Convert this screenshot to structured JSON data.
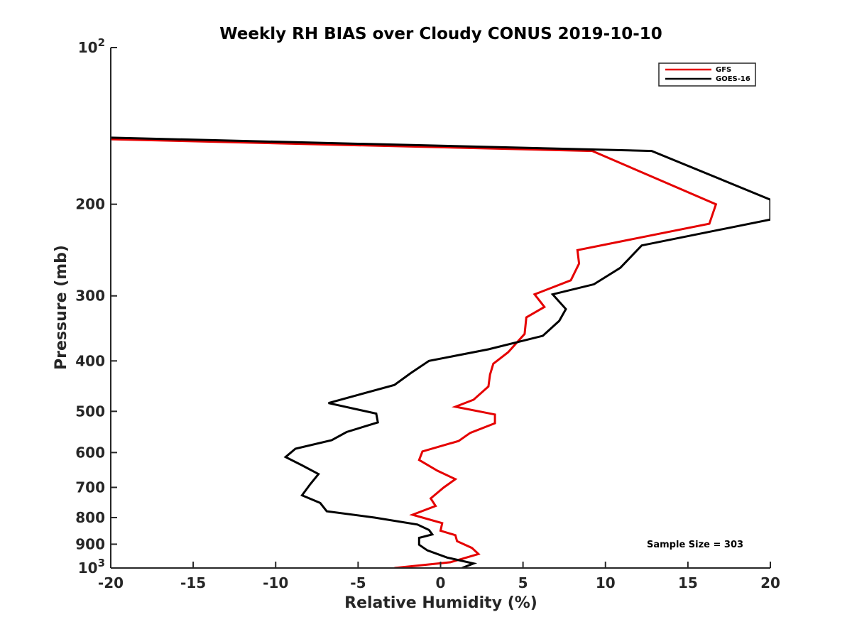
{
  "chart_data": {
    "type": "line",
    "title": "Weekly RH BIAS over Cloudy CONUS 2019-10-10",
    "xlabel": "Relative Humidity (%)",
    "ylabel": "Pressure (mb)",
    "xlim": [
      -20,
      20
    ],
    "ylim": [
      100,
      1000
    ],
    "y_scale": "log",
    "y_reversed": true,
    "x_ticks": [
      -20,
      -15,
      -10,
      -5,
      0,
      5,
      10,
      15,
      20
    ],
    "x_tick_labels": [
      "-20",
      "-15",
      "-10",
      "-5",
      "0",
      "5",
      "10",
      "15",
      "20"
    ],
    "y_ticks": [
      100,
      200,
      300,
      400,
      500,
      600,
      700,
      800,
      900,
      1000
    ],
    "y_tick_labels": [
      {
        "base": "10",
        "sup": "2"
      },
      {
        "base": "200",
        "sup": ""
      },
      {
        "base": "300",
        "sup": ""
      },
      {
        "base": "400",
        "sup": ""
      },
      {
        "base": "500",
        "sup": ""
      },
      {
        "base": "600",
        "sup": ""
      },
      {
        "base": "700",
        "sup": ""
      },
      {
        "base": "800",
        "sup": ""
      },
      {
        "base": "900",
        "sup": ""
      },
      {
        "base": "10",
        "sup": "3"
      }
    ],
    "grid": false,
    "legend_position": "top-right",
    "annotation": "Sample Size = 303",
    "series": [
      {
        "name": "GFS",
        "color": "#e50000",
        "points": [
          [
            -20,
            150
          ],
          [
            9.2,
            158
          ],
          [
            16.7,
            200
          ],
          [
            16.3,
            218
          ],
          [
            8.3,
            245
          ],
          [
            8.4,
            260
          ],
          [
            7.9,
            280
          ],
          [
            5.7,
            298
          ],
          [
            6.3,
            315
          ],
          [
            5.2,
            330
          ],
          [
            5.1,
            355
          ],
          [
            4.1,
            385
          ],
          [
            3.2,
            405
          ],
          [
            3.0,
            425
          ],
          [
            2.9,
            448
          ],
          [
            2.0,
            475
          ],
          [
            0.9,
            490
          ],
          [
            3.3,
            507
          ],
          [
            3.3,
            527
          ],
          [
            1.8,
            550
          ],
          [
            1.1,
            570
          ],
          [
            -1.1,
            597
          ],
          [
            -1.3,
            620
          ],
          [
            -0.2,
            650
          ],
          [
            0.9,
            675
          ],
          [
            0.2,
            700
          ],
          [
            -0.6,
            735
          ],
          [
            -0.3,
            760
          ],
          [
            -1.7,
            790
          ],
          [
            0.1,
            820
          ],
          [
            0.0,
            848
          ],
          [
            0.9,
            865
          ],
          [
            1.0,
            888
          ],
          [
            1.9,
            915
          ],
          [
            2.3,
            940
          ],
          [
            0.6,
            975
          ],
          [
            -2.8,
            1000
          ]
        ]
      },
      {
        "name": "GOES-16",
        "color": "#000000",
        "points": [
          [
            -20,
            149
          ],
          [
            12.8,
            158
          ],
          [
            20,
            196
          ],
          [
            20,
            214
          ],
          [
            12.2,
            240
          ],
          [
            10.9,
            265
          ],
          [
            9.3,
            285
          ],
          [
            6.8,
            298
          ],
          [
            7.6,
            318
          ],
          [
            7.2,
            335
          ],
          [
            6.2,
            358
          ],
          [
            2.9,
            380
          ],
          [
            -0.7,
            400
          ],
          [
            -1.8,
            422
          ],
          [
            -2.8,
            445
          ],
          [
            -6.8,
            482
          ],
          [
            -3.9,
            505
          ],
          [
            -3.8,
            525
          ],
          [
            -5.7,
            548
          ],
          [
            -6.6,
            568
          ],
          [
            -8.8,
            590
          ],
          [
            -9.4,
            612
          ],
          [
            -8.4,
            635
          ],
          [
            -7.4,
            660
          ],
          [
            -7.9,
            690
          ],
          [
            -8.4,
            725
          ],
          [
            -7.3,
            750
          ],
          [
            -6.9,
            778
          ],
          [
            -4.0,
            800
          ],
          [
            -1.4,
            825
          ],
          [
            -0.7,
            845
          ],
          [
            -0.5,
            862
          ],
          [
            -1.3,
            875
          ],
          [
            -1.3,
            902
          ],
          [
            -0.8,
            925
          ],
          [
            0.4,
            955
          ],
          [
            2.0,
            980
          ],
          [
            1.3,
            1000
          ]
        ]
      }
    ]
  }
}
